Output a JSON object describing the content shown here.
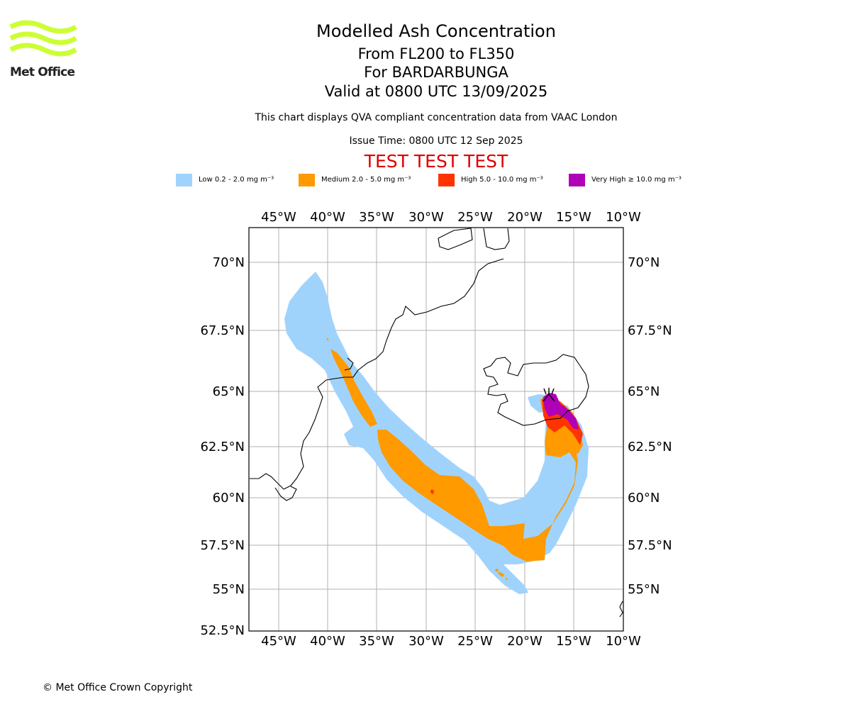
{
  "header": {
    "title": "Modelled Ash Concentration",
    "subtitle_levels": "From FL200 to FL350",
    "subtitle_volcano": "For BARDARBUNGA",
    "subtitle_valid": "Valid at 0800 UTC 13/09/2025",
    "compliance_note": "This chart displays QVA compliant concentration data from VAAC London",
    "issue_time": "Issue Time: 0800 UTC 12 Sep 2025",
    "test_banner": "TEST TEST TEST"
  },
  "logo": {
    "text": "Met Office",
    "color": "#ccff33"
  },
  "legend": [
    {
      "label": "Low 0.2 - 2.0 mg m⁻³",
      "color": "#a0d3fc"
    },
    {
      "label": "Medium 2.0 - 5.0 mg m⁻³",
      "color": "#ff9a00"
    },
    {
      "label": "High 5.0 - 10.0 mg m⁻³",
      "color": "#ff3300"
    },
    {
      "label": "Very High  ≥  10.0 mg m⁻³",
      "color": "#b000b8"
    }
  ],
  "map": {
    "lon_ticks": [
      "45°W",
      "40°W",
      "35°W",
      "30°W",
      "25°W",
      "20°W",
      "15°W",
      "10°W"
    ],
    "lat_ticks": [
      "70°N",
      "67.5°N",
      "65°N",
      "62.5°N",
      "60°N",
      "57.5°N",
      "55°N",
      "52.5°N"
    ],
    "grid": true,
    "volcano": "BARDARBUNGA"
  },
  "footer": {
    "copyright": "© Met Office Crown Copyright"
  }
}
